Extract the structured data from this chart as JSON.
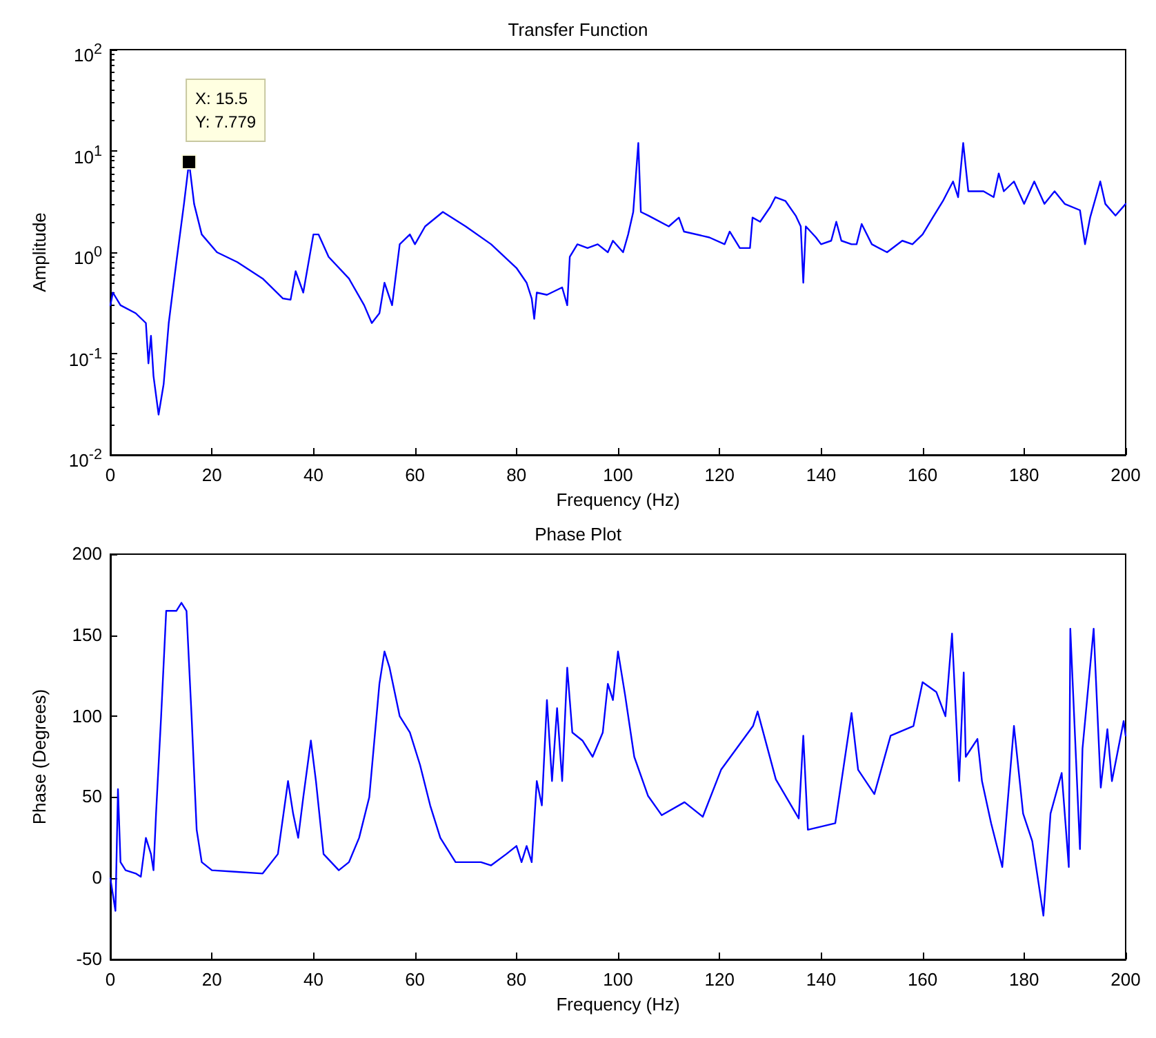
{
  "chart_data": [
    {
      "type": "line",
      "title": "Transfer Function",
      "xlabel": "Frequency (Hz)",
      "ylabel": "Amplitude",
      "log": "y",
      "grid": false,
      "marker": "none",
      "line_style": "solid",
      "xlim": [
        0,
        200
      ],
      "xticks": [
        0,
        20,
        40,
        60,
        80,
        100,
        120,
        140,
        160,
        180,
        200
      ],
      "ylim": [
        0.01,
        100
      ],
      "yticks": [
        {
          "value": 0.01,
          "label": "10$^{-2}$"
        },
        {
          "value": 0.1,
          "label": "10$^{-1}$"
        },
        {
          "value": 1,
          "label": "10$^{0}$"
        },
        {
          "value": 10,
          "label": "10$^{1}$"
        },
        {
          "value": 100,
          "label": "10$^{2}$"
        }
      ],
      "annotations": [
        {
          "text": "X: 15.5\nY: 7.779",
          "x": 15.5,
          "y": 7.779
        }
      ],
      "series": [
        {
          "color": "#0000ff",
          "x": [
            0,
            0.5,
            2,
            5,
            7,
            7.5,
            8,
            8.5,
            9.5,
            10.5,
            11.5,
            13,
            14.5,
            15.5,
            16.5,
            18,
            21,
            25,
            30,
            34,
            35.5,
            36.5,
            38,
            40,
            41,
            43,
            47,
            50,
            51.5,
            53,
            54,
            55.5,
            57,
            59,
            60,
            62,
            65.5,
            70,
            75,
            80,
            82,
            83,
            83.5,
            84,
            86,
            89,
            90,
            90.5,
            92,
            94,
            96,
            98,
            99,
            101,
            102,
            103,
            104,
            104.5,
            106,
            110,
            112,
            113,
            118,
            121,
            122,
            124,
            126,
            126.5,
            128,
            130,
            131,
            133,
            135,
            136,
            136.5,
            137,
            139,
            140,
            142,
            143,
            144,
            146,
            147,
            148,
            150,
            153,
            156,
            158,
            160,
            162,
            164,
            166,
            167,
            168,
            169,
            172,
            174,
            175,
            176,
            178,
            180,
            182,
            184,
            186,
            188,
            191,
            192,
            193,
            195,
            196,
            198,
            200
          ],
          "values": [
            0.3,
            0.4,
            0.3,
            0.25,
            0.2,
            0.08,
            0.15,
            0.06,
            0.025,
            0.05,
            0.2,
            0.8,
            3,
            7.779,
            3,
            1.5,
            1.0,
            0.8,
            0.55,
            0.35,
            0.34,
            0.65,
            0.4,
            1.5,
            1.5,
            0.9,
            0.55,
            0.3,
            0.2,
            0.25,
            0.5,
            0.3,
            1.2,
            1.5,
            1.2,
            1.8,
            2.5,
            1.8,
            1.2,
            0.7,
            0.5,
            0.35,
            0.22,
            0.4,
            0.38,
            0.45,
            0.3,
            0.9,
            1.2,
            1.1,
            1.2,
            1.0,
            1.3,
            1.0,
            1.5,
            2.5,
            12,
            2.5,
            2.3,
            1.8,
            2.2,
            1.6,
            1.4,
            1.2,
            1.6,
            1.1,
            1.1,
            2.2,
            2.0,
            2.8,
            3.5,
            3.2,
            2.3,
            1.8,
            0.5,
            1.8,
            1.4,
            1.2,
            1.3,
            2.0,
            1.3,
            1.2,
            1.2,
            1.9,
            1.2,
            1.0,
            1.3,
            1.2,
            1.5,
            2.2,
            3.2,
            5,
            3.5,
            12,
            4,
            4,
            3.5,
            6,
            4,
            5,
            3,
            5,
            3,
            4,
            3,
            2.6,
            1.2,
            2.2,
            5,
            3,
            2.3,
            3
          ]
        }
      ]
    },
    {
      "type": "line",
      "title": "Phase Plot",
      "xlabel": "Frequency (Hz)",
      "ylabel": "Phase (Degrees)",
      "grid": false,
      "marker": "none",
      "line_style": "solid",
      "xlim": [
        0,
        200
      ],
      "xticks": [
        0,
        20,
        40,
        60,
        80,
        100,
        120,
        140,
        160,
        180,
        200
      ],
      "ylim": [
        -50,
        200
      ],
      "yticks": [
        -50,
        0,
        50,
        100,
        150,
        200
      ],
      "series": [
        {
          "color": "#0000ff",
          "x": [
            0,
            1,
            1.5,
            2,
            3,
            5,
            6,
            7,
            8,
            8.5,
            9,
            10,
            11,
            13,
            14,
            15,
            16,
            17,
            18,
            20,
            25,
            30,
            33,
            35,
            36,
            37,
            38,
            39.5,
            40.5,
            42,
            45,
            47,
            49,
            51,
            53,
            54,
            55,
            57,
            59,
            61,
            63,
            65,
            68,
            73,
            75,
            78,
            80,
            81,
            82,
            83,
            84,
            85,
            86,
            87,
            88,
            89,
            90,
            91,
            93,
            95,
            97,
            98,
            99,
            100,
            101.4,
            103.2,
            105.9,
            108.6,
            113.1,
            116.7,
            120.3,
            126.6,
            127.5,
            131.1,
            135.6,
            136.5,
            137.4,
            142.8,
            146,
            147.3,
            150.5,
            153.7,
            158.2,
            160,
            162.7,
            164.5,
            165.8,
            167.2,
            168.1,
            168.5,
            170.8,
            171.7,
            173.5,
            175.7,
            177.1,
            178,
            179.8,
            181.6,
            183.8,
            185.2,
            187.4,
            188.8,
            189.1,
            191,
            191.5,
            193.7,
            195.1,
            196.4,
            197.3,
            199.6,
            200
          ],
          "values": [
            0,
            -20,
            55,
            10,
            5,
            3,
            1,
            25,
            15,
            5,
            40,
            100,
            165,
            165,
            170,
            165,
            100,
            30,
            10,
            5,
            4,
            3,
            15,
            60,
            40,
            25,
            50,
            85,
            60,
            15,
            5,
            10,
            25,
            50,
            120,
            140,
            130,
            100,
            90,
            70,
            45,
            25,
            10,
            10,
            8,
            15,
            20,
            10,
            20,
            10,
            60,
            45,
            110,
            60,
            105,
            60,
            130,
            90,
            85,
            75,
            90,
            120,
            110,
            140,
            113,
            75,
            51,
            39,
            47,
            38,
            67,
            94,
            103,
            61,
            37,
            88,
            30,
            34,
            102,
            67,
            52,
            88,
            94,
            121,
            115,
            100,
            151,
            60,
            127,
            75,
            86,
            60,
            34,
            7,
            60,
            94,
            40,
            23,
            -23,
            40,
            65,
            7,
            154,
            18,
            80,
            154,
            56,
            92,
            60,
            97,
            88
          ]
        }
      ]
    }
  ]
}
